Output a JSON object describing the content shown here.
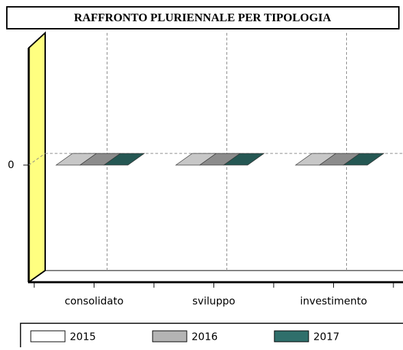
{
  "chart_data": {
    "type": "bar3d",
    "title": "RAFFRONTO PLURIENNALE PER TIPOLOGIA",
    "categories": [
      "consolidato",
      "sviluppo",
      "investimento"
    ],
    "series": [
      {
        "name": "2015",
        "color": "#ffffff",
        "values": [
          0,
          0,
          0
        ]
      },
      {
        "name": "2016",
        "color": "#b4b4b4",
        "values": [
          0,
          0,
          0
        ]
      },
      {
        "name": "2017",
        "color": "#2f6f6b",
        "values": [
          0,
          0,
          0
        ]
      }
    ],
    "ylim": [
      -1,
      1
    ],
    "yticks": [
      0
    ],
    "grid": true
  }
}
